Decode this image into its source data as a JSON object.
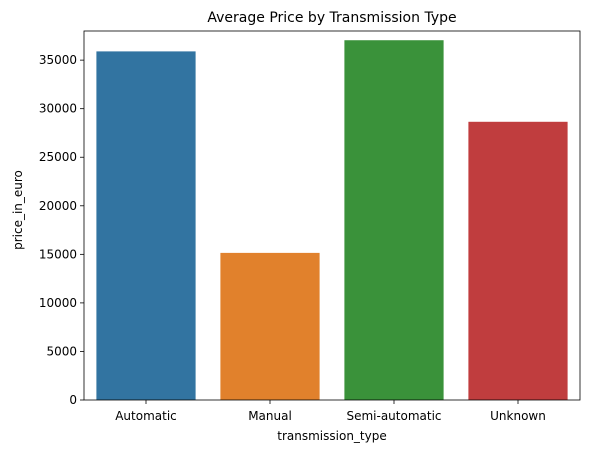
{
  "chart_data": {
    "type": "bar",
    "title": "Average Price by Transmission Type",
    "xlabel": "transmission_type",
    "ylabel": "price_in_euro",
    "categories": [
      "Automatic",
      "Manual",
      "Semi-automatic",
      "Unknown"
    ],
    "values": [
      35900,
      15150,
      37050,
      28650
    ],
    "colors": [
      "#3274a1",
      "#e1812c",
      "#3a923a",
      "#c03d3e"
    ],
    "ylim": [
      0,
      38000
    ],
    "yticks": [
      0,
      5000,
      10000,
      15000,
      20000,
      25000,
      30000,
      35000
    ],
    "grid": false,
    "legend": "none"
  }
}
